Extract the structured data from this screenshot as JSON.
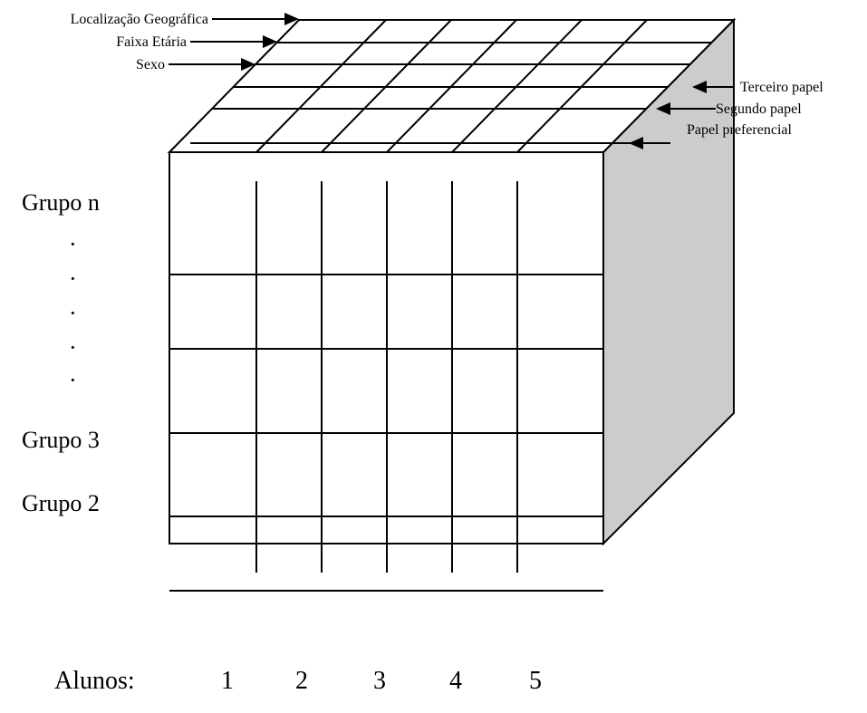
{
  "colors": {
    "line": "#000000",
    "side_face": "#cccccc",
    "background": "#ffffff"
  },
  "top_labels": {
    "geo": "Localização Geográfica",
    "age": "Faixa Etária",
    "sex": "Sexo"
  },
  "right_labels": {
    "third": "Terceiro papel",
    "second": "Segundo papel",
    "preferred": "Papel preferencial"
  },
  "groups": {
    "n": "Grupo n",
    "three": "Grupo 3",
    "two": "Grupo 2"
  },
  "dots": [
    "·",
    "·",
    "·",
    "·",
    "·"
  ],
  "students": {
    "label": "Alunos:",
    "numbers": [
      "1",
      "2",
      "3",
      "4",
      "5"
    ]
  }
}
